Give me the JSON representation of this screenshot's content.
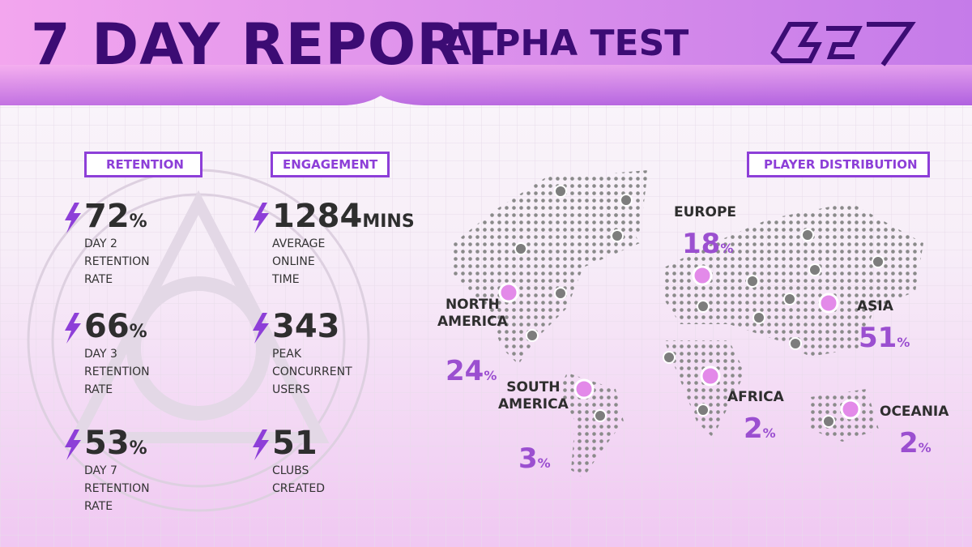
{
  "header": {
    "title": "7 DAY REPORT",
    "subtitle": "ALPHA TEST"
  },
  "retention": {
    "heading": "RETENTION",
    "items": [
      {
        "value": "72",
        "unit": "%",
        "lines": [
          "DAY 2",
          "RETENTION",
          "RATE"
        ]
      },
      {
        "value": "66",
        "unit": "%",
        "lines": [
          "DAY 3",
          "RETENTION",
          "RATE"
        ]
      },
      {
        "value": "53",
        "unit": "%",
        "lines": [
          "DAY 7",
          "RETENTION",
          "RATE"
        ]
      }
    ]
  },
  "engagement": {
    "heading": "ENGAGEMENT",
    "items": [
      {
        "value": "1284",
        "unit": "MINS",
        "lines": [
          "AVERAGE",
          "ONLINE",
          "TIME"
        ]
      },
      {
        "value": "343",
        "lines": [
          "PEAK",
          "CONCURRENT",
          "USERS"
        ]
      },
      {
        "value": "51",
        "lines": [
          "CLUBS",
          "CREATED"
        ]
      }
    ]
  },
  "distribution": {
    "heading": "PLAYER DISTRIBUTION",
    "regions": [
      {
        "lines": [
          "NORTH",
          "AMERICA"
        ],
        "value": "24",
        "unit": "%"
      },
      {
        "lines": [
          "SOUTH",
          "AMERICA"
        ],
        "value": "3",
        "unit": "%"
      },
      {
        "lines": [
          "EUROPE"
        ],
        "value": "18",
        "unit": "%"
      },
      {
        "lines": [
          "AFRICA"
        ],
        "value": "2",
        "unit": "%"
      },
      {
        "lines": [
          "ASIA"
        ],
        "value": "51",
        "unit": "%"
      },
      {
        "lines": [
          "OCEANIA"
        ],
        "value": "2",
        "unit": "%"
      }
    ]
  }
}
